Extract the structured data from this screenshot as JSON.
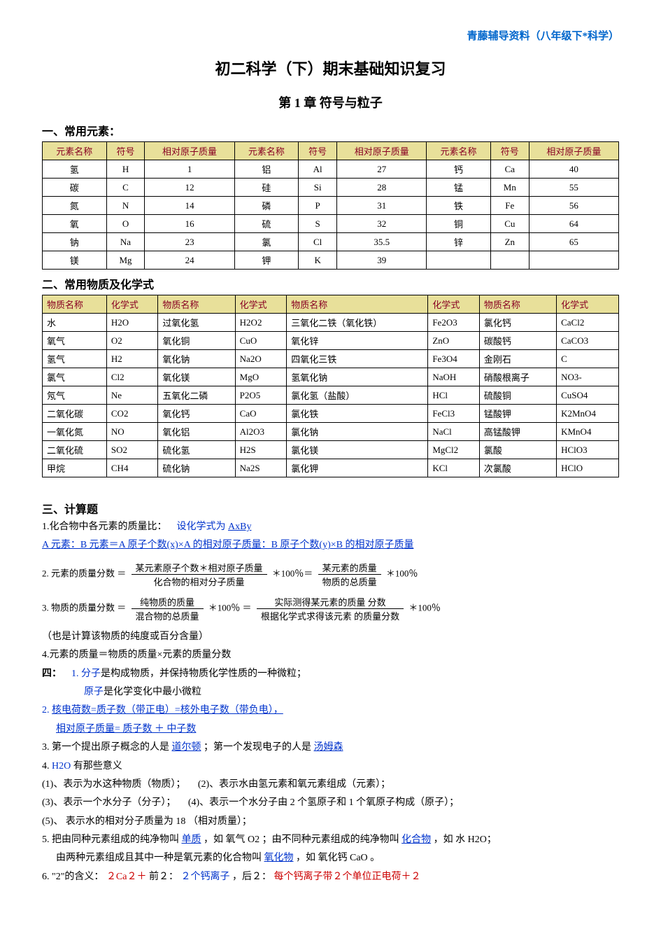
{
  "header": {
    "right": "青藤辅导资料（八年级下*科学）"
  },
  "title": "初二科学（下）期末基础知识复习",
  "chapter": "第 1 章  符号与粒子",
  "section1": {
    "title": "一、常用元素：",
    "headers": [
      "元素名称",
      "符号",
      "相对原子质量",
      "元素名称",
      "符号",
      "相对原子质量",
      "元素名称",
      "符号",
      "相对原子质量"
    ],
    "rows": [
      [
        "氢",
        "H",
        "1",
        "铝",
        "Al",
        "27",
        "钙",
        "Ca",
        "40"
      ],
      [
        "碳",
        "C",
        "12",
        "硅",
        "Si",
        "28",
        "锰",
        "Mn",
        "55"
      ],
      [
        "氮",
        "N",
        "14",
        "磷",
        "P",
        "31",
        "铁",
        "Fe",
        "56"
      ],
      [
        "氧",
        "O",
        "16",
        "硫",
        "S",
        "32",
        "铜",
        "Cu",
        "64"
      ],
      [
        "钠",
        "Na",
        "23",
        "氯",
        "Cl",
        "35.5",
        "锌",
        "Zn",
        "65"
      ],
      [
        "镁",
        "Mg",
        "24",
        "钾",
        "K",
        "39",
        "",
        "",
        ""
      ]
    ]
  },
  "section2": {
    "title": "二、常用物质及化学式",
    "headers": [
      "物质名称",
      "化学式",
      "物质名称",
      "化学式",
      "物质名称",
      "化学式",
      "物质名称",
      "化学式"
    ],
    "rows": [
      [
        "水",
        "H2O",
        "过氧化氢",
        "H2O2",
        "三氧化二铁（氧化铁）",
        "Fe2O3",
        "氯化钙",
        "CaCl2"
      ],
      [
        "氧气",
        "O2",
        "氧化铜",
        "CuO",
        "氧化锌",
        "ZnO",
        "碳酸钙",
        "CaCO3"
      ],
      [
        "氢气",
        "H2",
        "氧化钠",
        "Na2O",
        "四氧化三铁",
        "Fe3O4",
        "金刚石",
        "C"
      ],
      [
        "氯气",
        "Cl2",
        "氧化镁",
        "MgO",
        "氢氧化钠",
        "NaOH",
        "硝酸根离子",
        "NO3-"
      ],
      [
        "氖气",
        "Ne",
        "五氧化二磷",
        "P2O5",
        "氯化氢（盐酸）",
        "HCl",
        "硫酸铜",
        "CuSO4"
      ],
      [
        "二氧化碳",
        "CO2",
        "氧化钙",
        "CaO",
        "氯化铁",
        "FeCl3",
        "锰酸钾",
        "K2MnO4"
      ],
      [
        "一氧化氮",
        "NO",
        "氧化铝",
        "Al2O3",
        "氯化钠",
        "NaCl",
        "高锰酸钾",
        "KMnO4"
      ],
      [
        "二氧化硫",
        "SO2",
        "硫化氢",
        "H2S",
        "氯化镁",
        "MgCl2",
        "氯酸",
        "HClO3"
      ],
      [
        "甲烷",
        "CH4",
        "硫化钠",
        "Na2S",
        "氯化钾",
        "KCl",
        "次氯酸",
        "HClO"
      ]
    ]
  },
  "section3": {
    "title": "三、计算题",
    "line1a": "1.化合物中各元素的质量比：",
    "line1b": "设化学式为",
    "line1c": "AxBy",
    "line2": "A 元素：B 元素＝A 原子个数(x)×A 的相对原子质量：B 原子个数(y)×B 的相对原子质量",
    "f2": {
      "num": "2.",
      "label": "元素的质量分数",
      "n1": "某元素原子个数＊相对原子质量",
      "d1": "化合物的相对分子质量",
      "mid": "＊100％＝",
      "n2": "某元素的质量",
      "d2": "物质的总质量",
      "end": "＊100％"
    },
    "f3": {
      "num": "3.",
      "label": "物质的质量分数",
      "n1": "纯物质的质量",
      "d1": "混合物的总质量",
      "mid": "＊100％ ＝",
      "n2": "实际测得某元素的质量 分数",
      "d2": "根据化学式求得该元素 的质量分数",
      "end": "＊100％"
    },
    "note": "（也是计算该物质的纯度或百分含量）",
    "line4": "4.元素的质量＝物质的质量×元素的质量分数"
  },
  "section4": {
    "title": "四：",
    "l1a": "1.",
    "l1b": "分子",
    "l1c": "是构成物质，并保持物质化学性质的一种微粒；",
    "l1d": "原子",
    "l1e": "是化学变化中最小微粒",
    "l2a": "2.",
    "l2b": "核电荷数=质子数（带正电）=核外电子数（带负电），",
    "l2c": "相对原子质量=  质子数 ＋ 中子数",
    "l3a": "3.  第一个提出原子概念的人是",
    "l3b": "道尔顿",
    "l3c": "；第一个发现电子的人是",
    "l3d": "汤姆森",
    "l4a": "4.",
    "l4b": "H2O",
    "l4c": "有那些意义",
    "m1": "(1)、表示为水这种物质（物质）；",
    "m2": "(2)、表示水由氢元素和氧元素组成（元素）；",
    "m3": "(3)、表示一个水分子（分子）；",
    "m4": "(4)、表示一个水分子由 2 个氢原子和 1 个氧原子构成（原子）；",
    "m5": "(5)、 表示水的相对分子质量为 18 （相对质量）；",
    "l5a": "5.  把由同种元素组成的纯净物叫",
    "l5b": "单质",
    "l5c": "，如 氧气 O2 ；由不同种元素组成的纯净物叫",
    "l5d": "化合物",
    "l5e": "，如 水 H2O；",
    "l5f": "由两种元素组成且其中一种是氧元素的化合物叫",
    "l5g": "氧化物",
    "l5h": "，如 氧化钙 CaO 。",
    "l6a": "6.  \"2\"的含义：",
    "l6b": "２Ca２＋",
    "l6c": " 前２：",
    "l6d": "２个钙离子",
    "l6e": " ，后２：",
    "l6f": "每个钙离子带２个单位正电荷＋２"
  }
}
